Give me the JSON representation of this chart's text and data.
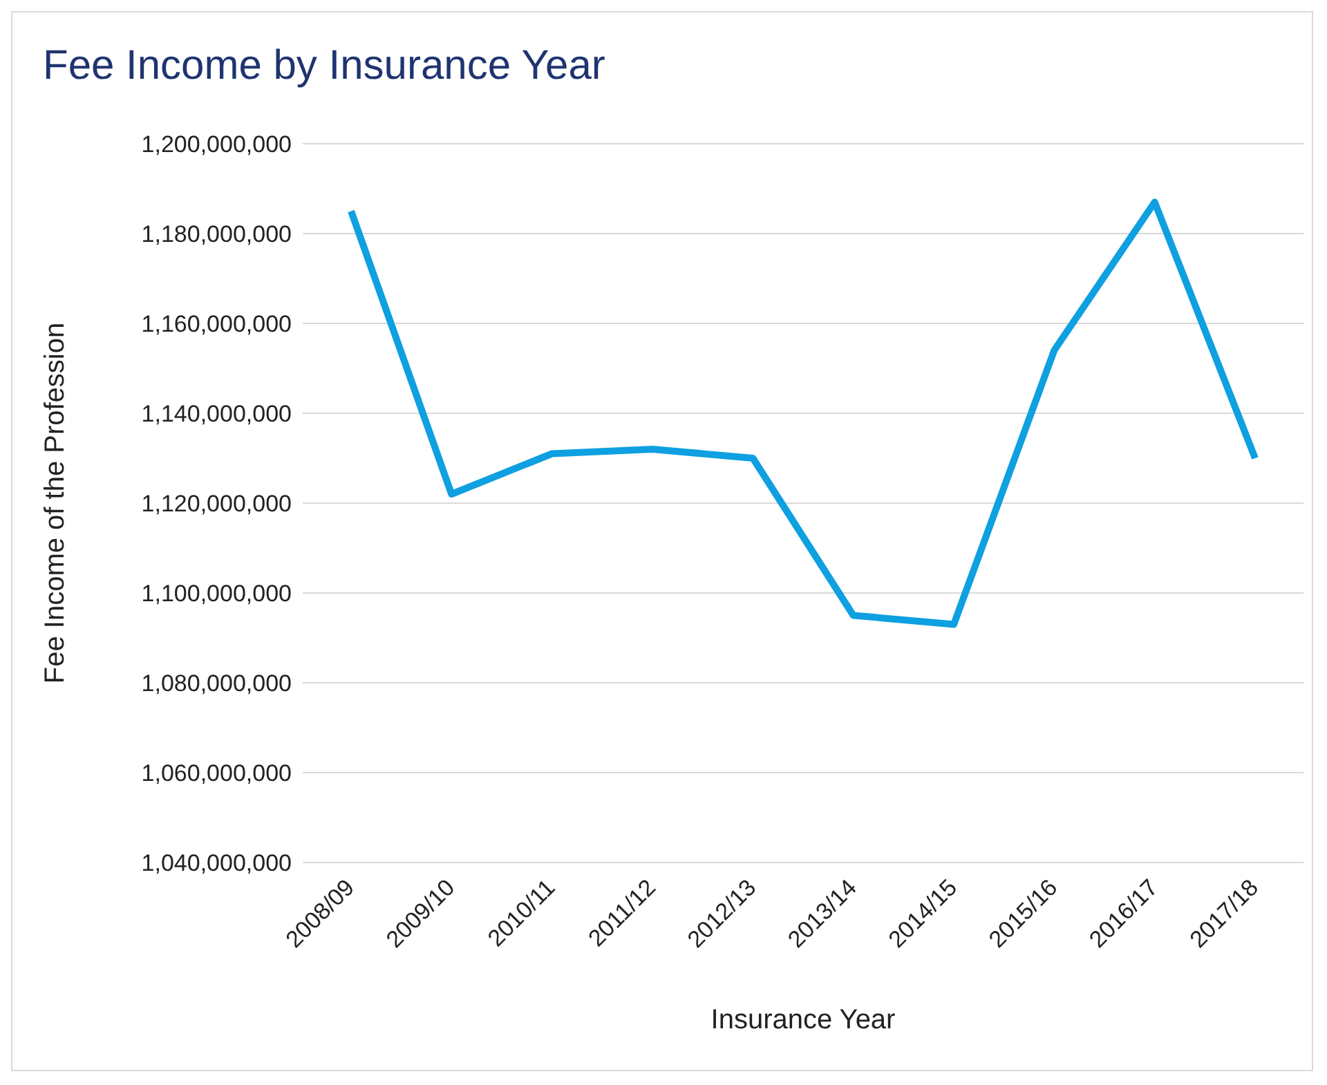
{
  "chart_data": {
    "type": "line",
    "title": "Fee Income by Insurance Year",
    "xlabel": "Insurance Year",
    "ylabel": "Fee Income of the Profession",
    "categories": [
      "2008/09",
      "2009/10",
      "2010/11",
      "2011/12",
      "2012/13",
      "2013/14",
      "2014/15",
      "2015/16",
      "2016/17",
      "2017/18"
    ],
    "series": [
      {
        "color": "#0ea0e0",
        "values": [
          1185000000,
          1122000000,
          1131000000,
          1132000000,
          1130000000,
          1095000000,
          1093000000,
          1154000000,
          1187000000,
          1130000000
        ]
      }
    ],
    "ylim": [
      1040000000,
      1200000000
    ],
    "yticks": [
      {
        "value": 1040000000,
        "label": "1,040,000,000"
      },
      {
        "value": 1060000000,
        "label": "1,060,000,000"
      },
      {
        "value": 1080000000,
        "label": "1,080,000,000"
      },
      {
        "value": 1100000000,
        "label": "1,100,000,000"
      },
      {
        "value": 1120000000,
        "label": "1,120,000,000"
      },
      {
        "value": 1140000000,
        "label": "1,140,000,000"
      },
      {
        "value": 1160000000,
        "label": "1,160,000,000"
      },
      {
        "value": 1180000000,
        "label": "1,180,000,000"
      },
      {
        "value": 1200000000,
        "label": "1,200,000,000"
      }
    ],
    "grid": "y",
    "legend": false,
    "marker": "none",
    "line_style": "solid"
  }
}
